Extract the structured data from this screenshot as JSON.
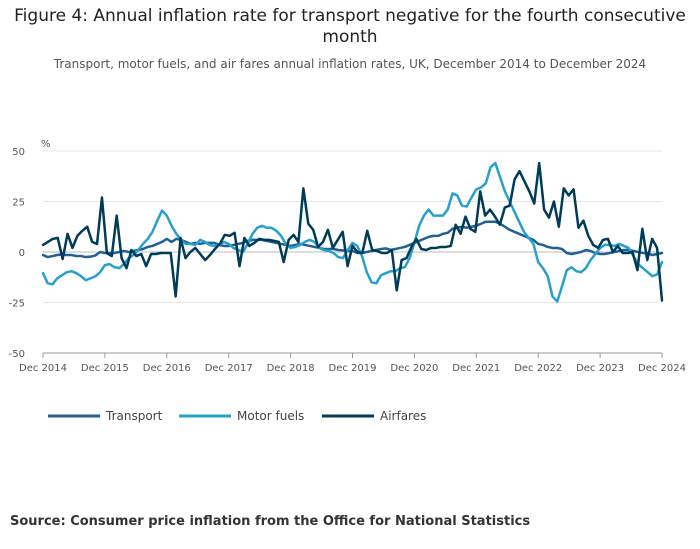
{
  "title": "Figure 4: Annual inflation rate for transport negative for the fourth consecutive month",
  "subtitle": "Transport, motor fuels, and air fares annual inflation rates, UK, December 2014 to December 2024",
  "source": "Source: Consumer price inflation from the Office for National Statistics",
  "chart_data": {
    "type": "line",
    "ylabel": "%",
    "xlabel": "",
    "ylim": [
      -50,
      50
    ],
    "yticks": [
      50,
      25,
      0,
      -25,
      -50
    ],
    "x_ticks": [
      "Dec 2014",
      "Dec 2015",
      "Dec 2016",
      "Dec 2017",
      "Dec 2018",
      "Dec 2019",
      "Dec 2020",
      "Dec 2021",
      "Dec 2022",
      "Dec 2023",
      "Dec 2024"
    ],
    "x_start": "Dec 2014",
    "x_end": "Dec 2024",
    "legend_position": "bottom-left",
    "grid": "horizontal",
    "series": [
      {
        "name": "Transport",
        "color": "#206095",
        "values": [
          -1.5,
          -2.5,
          -2,
          -1.5,
          -1.2,
          -1.5,
          -1.5,
          -2,
          -2,
          -2.5,
          -2.3,
          -1.7,
          0,
          -0.5,
          -0.5,
          -0.5,
          0,
          0.5,
          0,
          0.5,
          1,
          1.5,
          2.5,
          3,
          4,
          5,
          6.5,
          5,
          6.5,
          6,
          5,
          4,
          4.5,
          4,
          4.5,
          4.5,
          4.5,
          3.5,
          3,
          3,
          3.5,
          4,
          4.5,
          5.5,
          6,
          6,
          6,
          5.5,
          5,
          4.5,
          4,
          3.5,
          3,
          3.5,
          4,
          3.5,
          3,
          2.5,
          2,
          1.5,
          1.5,
          1.5,
          1,
          0.8,
          0.5,
          0.5,
          -0.5,
          -0.5,
          0,
          0.5,
          1,
          1.5,
          1.8,
          1,
          1.5,
          2,
          2.5,
          3.5,
          4.5,
          5.5,
          6.5,
          7.5,
          8,
          8,
          9,
          9.5,
          11.5,
          12,
          12.5,
          12,
          12.5,
          13,
          14,
          15,
          15,
          15,
          14,
          12.5,
          11,
          10,
          9,
          8,
          7,
          6,
          4,
          3.5,
          2.5,
          2,
          2,
          1.5,
          -0.5,
          -1,
          -0.5,
          0,
          1,
          0.5,
          -0.5,
          -1,
          -1,
          -0.5,
          0,
          0.5,
          1,
          1,
          0.5,
          0,
          -0.5,
          -0.7,
          -1.5,
          -1,
          -0.5
        ]
      },
      {
        "name": "Motor fuels",
        "color": "#27a0cc",
        "values": [
          -10.5,
          -15.5,
          -16,
          -13,
          -11.5,
          -10,
          -9.5,
          -10.5,
          -12,
          -14,
          -13,
          -12,
          -10,
          -6.5,
          -6,
          -7.5,
          -8,
          -6,
          -3,
          -1.5,
          1,
          4,
          6.5,
          10,
          15.5,
          20.5,
          18,
          13,
          9,
          6,
          4,
          4,
          3.5,
          6,
          5,
          3.5,
          3,
          3.5,
          5,
          4,
          2,
          1,
          0,
          4,
          9,
          12,
          13,
          12,
          12,
          10.5,
          8,
          4,
          2,
          2.5,
          3.5,
          5,
          6,
          5,
          2,
          1,
          0.5,
          -0.5,
          -2.5,
          -3,
          1,
          4.5,
          3,
          -2,
          -10,
          -15,
          -15.5,
          -11.5,
          -10.5,
          -9.5,
          -9.5,
          -8,
          -7.5,
          -3,
          4.5,
          13,
          18,
          21,
          18,
          18,
          18,
          21,
          29,
          28,
          23,
          22.5,
          27,
          31,
          32,
          34,
          42,
          44,
          37,
          30,
          25,
          20,
          15,
          10,
          7,
          4,
          -5,
          -8,
          -12,
          -22,
          -24.5,
          -17,
          -9,
          -7.5,
          -9.5,
          -10,
          -8,
          -4,
          -1,
          2,
          3.5,
          3.5,
          3,
          4,
          3,
          2,
          -2,
          -6,
          -8,
          -10,
          -12,
          -11,
          -5
        ]
      },
      {
        "name": "Airfares",
        "color": "#003c57",
        "values": [
          3.5,
          5,
          6.5,
          7,
          -3.5,
          9,
          2,
          8,
          10.5,
          12.5,
          5,
          4,
          27,
          -0.5,
          -2,
          18,
          -3,
          -8,
          1,
          -2,
          -1,
          -7,
          -1,
          -1,
          -0.5,
          -0.5,
          -0.5,
          -22,
          7,
          -3,
          0,
          2,
          -1,
          -4,
          -1.5,
          1.5,
          4,
          8.5,
          8,
          9.5,
          -7,
          7,
          3,
          4.5,
          6.5,
          6,
          6,
          5.5,
          5,
          -5,
          6,
          8.5,
          5,
          31.5,
          14,
          11,
          2.5,
          5,
          11,
          2,
          6,
          10,
          -7,
          3,
          0,
          -0.5,
          10.5,
          1,
          0.5,
          -0.5,
          -0.5,
          1,
          -19,
          -4,
          -3,
          2.5,
          6.5,
          1.5,
          1,
          2,
          2,
          2.5,
          2.5,
          3,
          13.5,
          9,
          17.5,
          11.5,
          10,
          30,
          18,
          21,
          17.5,
          13.5,
          22,
          23,
          36,
          40,
          35,
          30,
          24,
          44,
          21,
          17,
          25,
          12.5,
          31.5,
          28,
          31,
          12,
          15.5,
          8,
          3.5,
          2,
          6,
          6.5,
          0,
          3,
          -0.5,
          -0.5,
          0,
          -9,
          11.5,
          -4,
          6.5,
          2,
          -24
        ]
      }
    ]
  }
}
